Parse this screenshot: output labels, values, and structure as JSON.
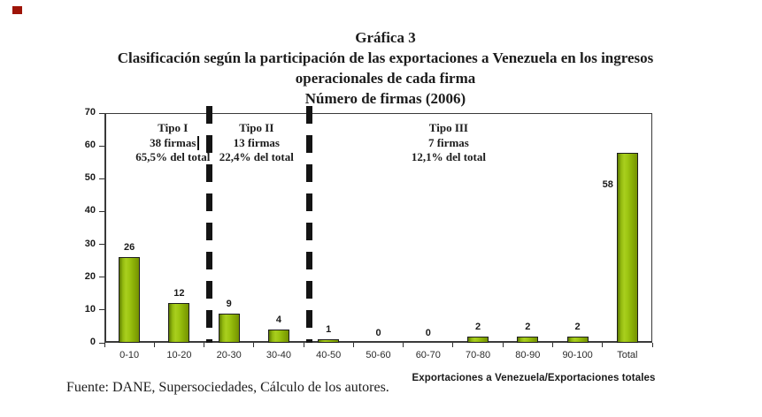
{
  "marker": {
    "color": "#9e1408"
  },
  "title": {
    "lines": [
      "Gráfica 3",
      "Clasificación según la participación de las exportaciones a Venezuela en  los ingresos",
      "operacionales de cada firma",
      "Número de firmas (2006)"
    ]
  },
  "footer": {
    "source": "Fuente: DANE, Supersociedades, Cálculo de los autores."
  },
  "chart_data": {
    "type": "bar",
    "title": "Número de firmas (2006)",
    "categories": [
      "0-10",
      "10-20",
      "20-30",
      "30-40",
      "40-50",
      "50-60",
      "60-70",
      "70-80",
      "80-90",
      "90-100",
      "Total"
    ],
    "values": [
      26,
      12,
      9,
      4,
      1,
      0,
      0,
      2,
      2,
      2,
      58
    ],
    "xlabel": "Exportaciones a Venezuela/Exportaciones totales",
    "ylabel": "",
    "ylim": [
      0,
      70
    ],
    "yticks": [
      0,
      10,
      20,
      30,
      40,
      50,
      60,
      70
    ],
    "grid": false,
    "legend": "none",
    "bar_fill_gradient": [
      "#5f7c02",
      "#a9cf1e",
      "#759202"
    ],
    "bar_border_color": "#1d1d1d",
    "value_label_position": "above",
    "total_label_position": "left-of-bar",
    "annotations": [
      {
        "lines": [
          "Tipo I",
          "38 firmas",
          "65,5% del total"
        ],
        "span": [
          0,
          1
        ],
        "dx": 21,
        "has_text_cursor_after_line": 1
      },
      {
        "lines": [
          "Tipo II",
          "13 firmas",
          "22,4% del total"
        ],
        "span": [
          2,
          3
        ],
        "dx": 3
      },
      {
        "lines": [
          "Tipo III",
          "7 firmas",
          "12,1% del total"
        ],
        "span": [
          4,
          9
        ],
        "dx": -5
      }
    ],
    "separators_after_category_index": [
      1,
      3
    ]
  }
}
